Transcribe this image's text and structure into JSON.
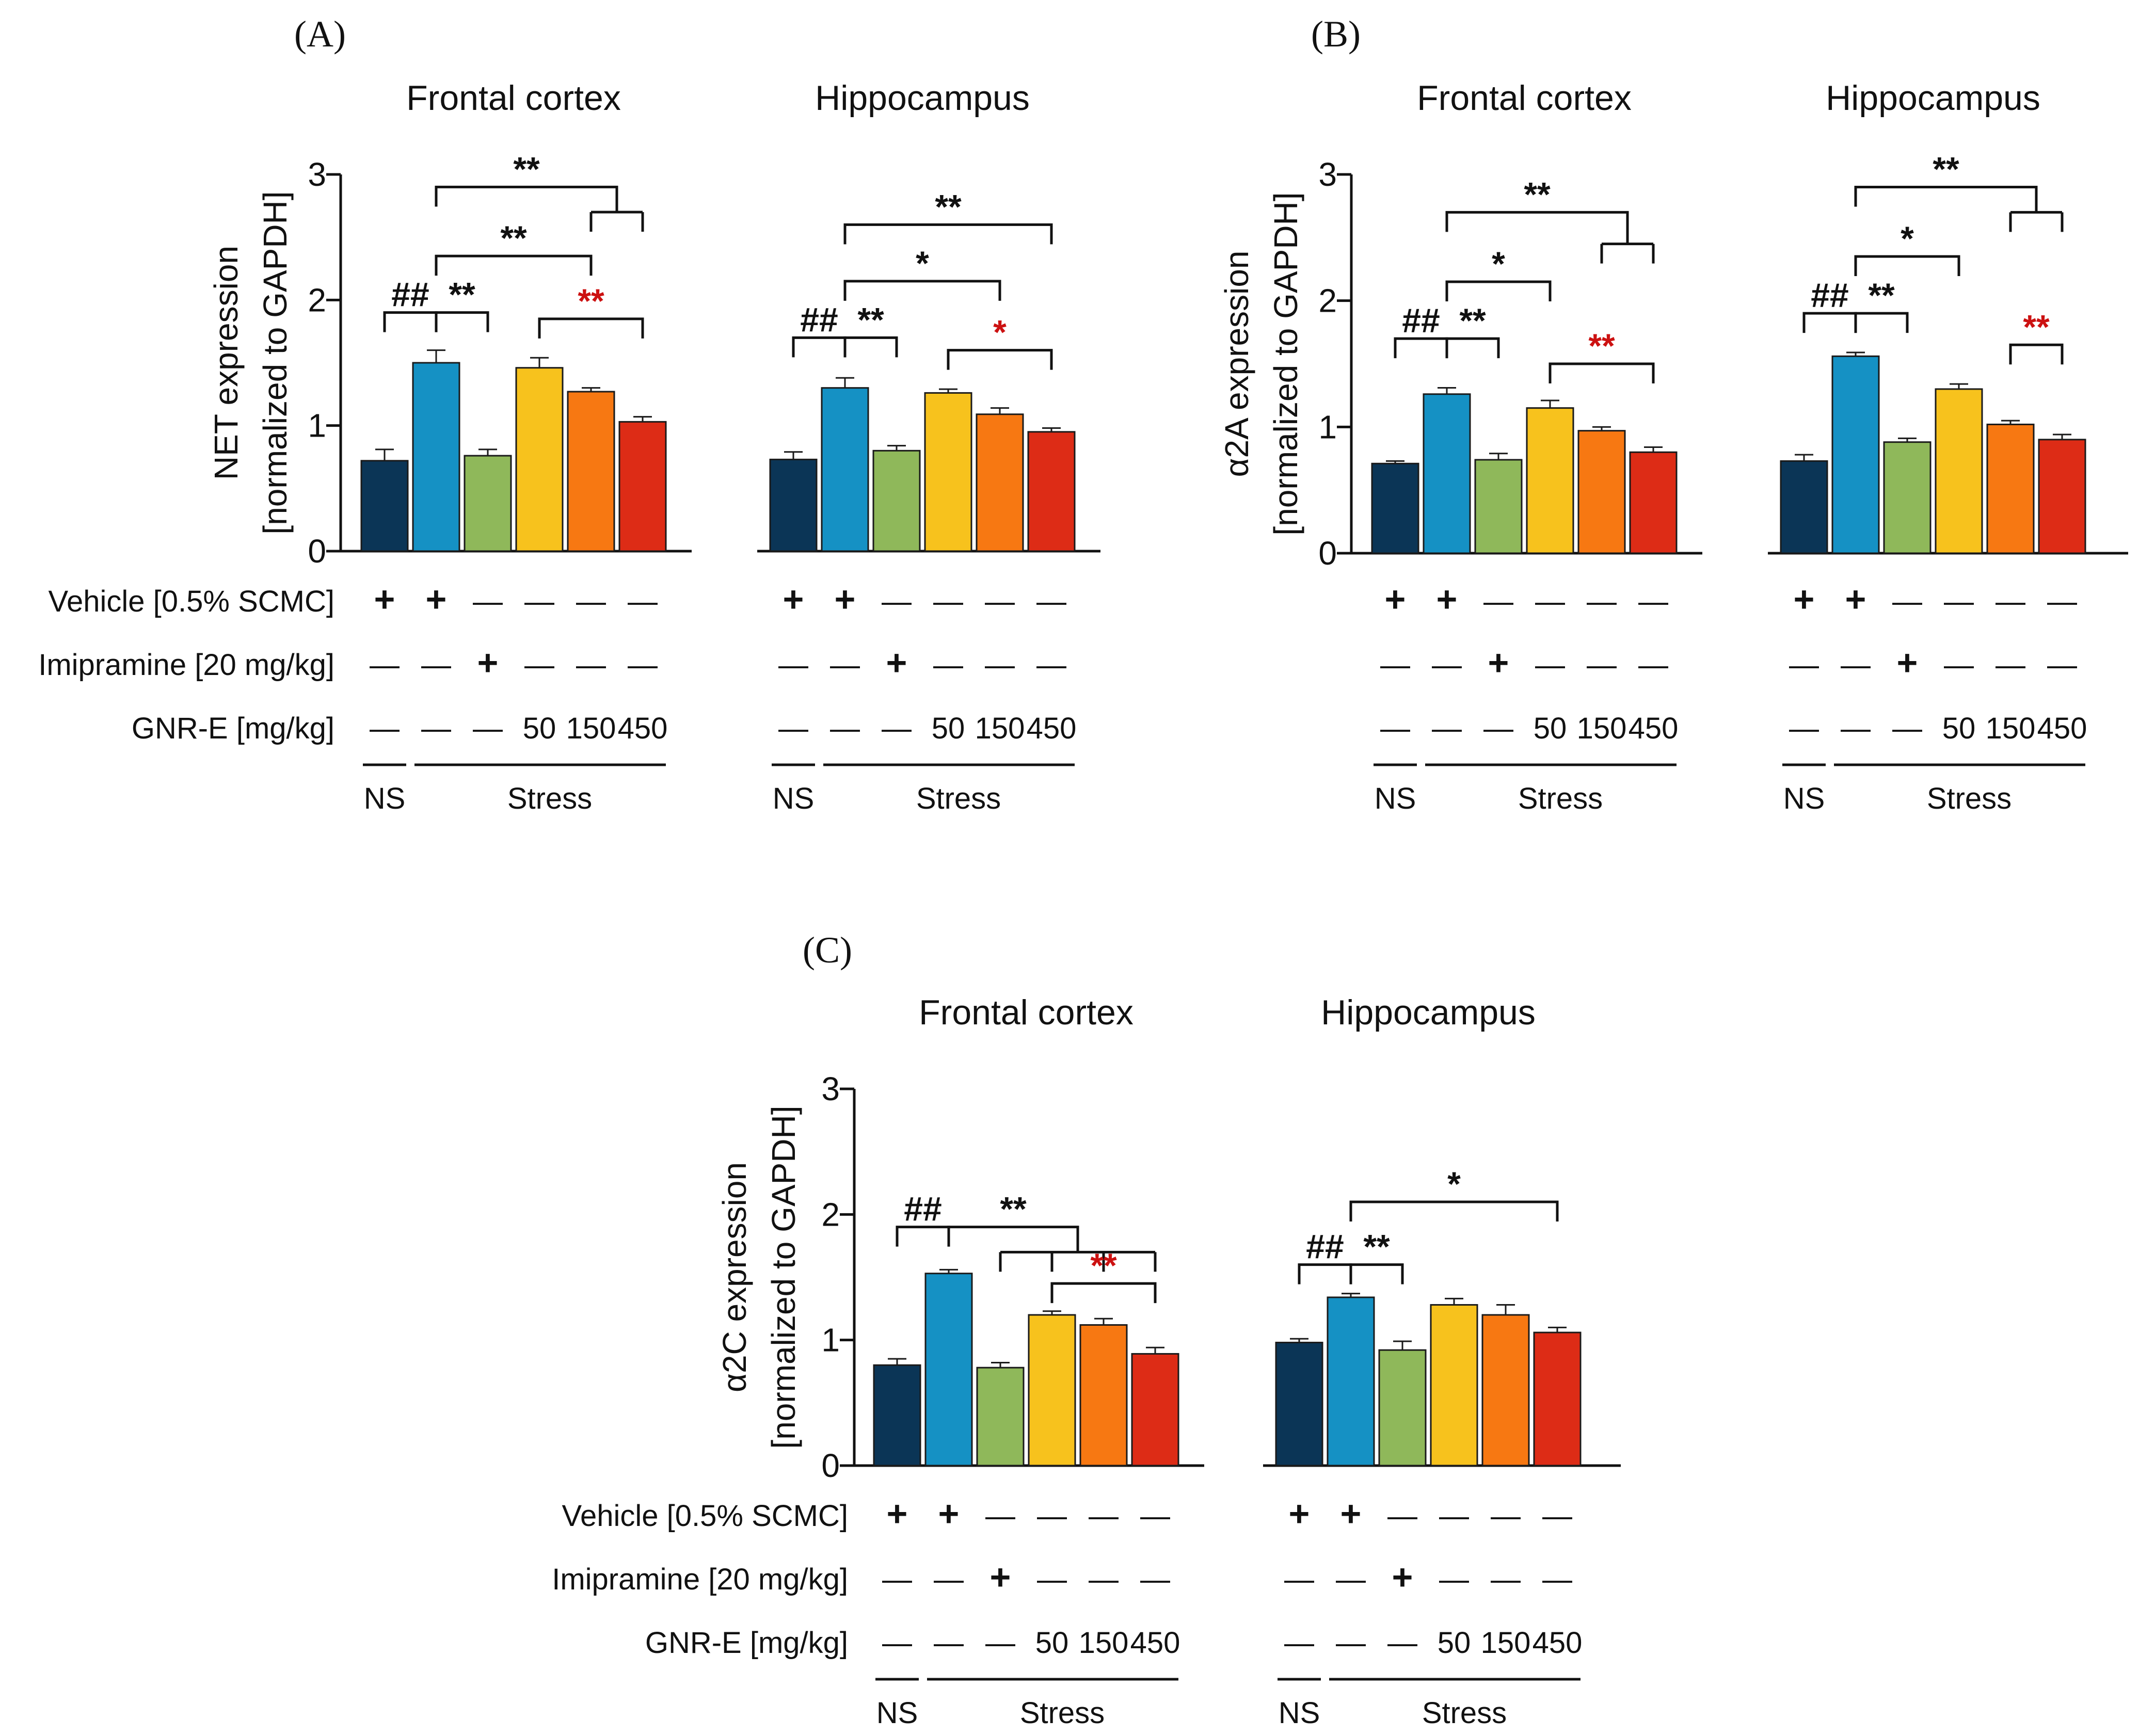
{
  "figure": {
    "row_labels": [
      "Vehicle [0.5% SCMC]",
      "Imipramine [20 mg/kg]",
      "GNR-E [mg/kg]"
    ],
    "group_labels": [
      "NS",
      "Stress"
    ],
    "regions": [
      "Frontal cortex",
      "Hippocampus"
    ]
  },
  "chart_data": [
    {
      "panel": "(A)",
      "type": "bar",
      "ylabel": [
        "NET expression",
        "[normalized to GAPDH]"
      ],
      "ylim": [
        0,
        3
      ],
      "yticks": [
        0,
        1,
        2,
        3
      ],
      "bar_colors": [
        "#0b3556",
        "#1591c4",
        "#8fb85a",
        "#f7c21d",
        "#f77812",
        "#dd2c16"
      ],
      "treatments": {
        "vehicle": [
          "+",
          "+",
          "—",
          "—",
          "—",
          "—"
        ],
        "imipramine": [
          "—",
          "—",
          "+",
          "—",
          "—",
          "—"
        ],
        "gnre": [
          "—",
          "—",
          "—",
          "50",
          "150",
          "450"
        ]
      },
      "subplots": [
        {
          "region": "Frontal cortex",
          "values": [
            0.72,
            1.5,
            0.76,
            1.46,
            1.27,
            1.03
          ],
          "errors": [
            0.09,
            0.1,
            0.05,
            0.08,
            0.03,
            0.04
          ],
          "annotations": [
            {
              "text": "##",
              "color": "#111111",
              "kind": "simple",
              "from": 0,
              "to": 1,
              "y": 1.9
            },
            {
              "text": "**",
              "color": "#111111",
              "kind": "simple",
              "from": 1,
              "to": 2,
              "y": 1.9
            },
            {
              "text": "**",
              "color": "#111111",
              "kind": "simple",
              "from": 1,
              "to": 4,
              "y": 2.35
            },
            {
              "text": "**",
              "color": "#cc1111",
              "kind": "simple",
              "from": 3,
              "to": 5,
              "y": 1.85
            },
            {
              "text": "**",
              "color": "#111111",
              "kind": "group",
              "from": 1,
              "to": [
                4,
                5
              ],
              "y": 2.9,
              "sub_y": 2.7
            }
          ]
        },
        {
          "region": "Hippocampus",
          "values": [
            0.73,
            1.3,
            0.8,
            1.26,
            1.09,
            0.95
          ],
          "errors": [
            0.06,
            0.08,
            0.04,
            0.03,
            0.05,
            0.03
          ],
          "annotations": [
            {
              "text": "##",
              "color": "#111111",
              "kind": "simple",
              "from": 0,
              "to": 1,
              "y": 1.7
            },
            {
              "text": "**",
              "color": "#111111",
              "kind": "simple",
              "from": 1,
              "to": 2,
              "y": 1.7
            },
            {
              "text": "*",
              "color": "#111111",
              "kind": "simple",
              "from": 1,
              "to": 4,
              "y": 2.15
            },
            {
              "text": "*",
              "color": "#cc1111",
              "kind": "simple",
              "from": 3,
              "to": 5,
              "y": 1.6
            },
            {
              "text": "**",
              "color": "#111111",
              "kind": "simple",
              "from": 1,
              "to": 5,
              "y": 2.6
            }
          ]
        }
      ]
    },
    {
      "panel": "(B)",
      "type": "bar",
      "ylabel": [
        "α2A expression",
        "[normalized to GAPDH]"
      ],
      "ylim": [
        0,
        3
      ],
      "yticks": [
        0,
        1,
        2,
        3
      ],
      "bar_colors": [
        "#0b3556",
        "#1591c4",
        "#8fb85a",
        "#f7c21d",
        "#f77812",
        "#dd2c16"
      ],
      "treatments": {
        "vehicle": [
          "+",
          "+",
          "—",
          "—",
          "—",
          "—"
        ],
        "imipramine": [
          "—",
          "—",
          "+",
          "—",
          "—",
          "—"
        ],
        "gnre": [
          "—",
          "—",
          "—",
          "50",
          "150",
          "450"
        ]
      },
      "subplots": [
        {
          "region": "Frontal cortex",
          "values": [
            0.71,
            1.26,
            0.74,
            1.15,
            0.97,
            0.8
          ],
          "errors": [
            0.02,
            0.05,
            0.05,
            0.06,
            0.03,
            0.04
          ],
          "annotations": [
            {
              "text": "##",
              "color": "#111111",
              "kind": "simple",
              "from": 0,
              "to": 1,
              "y": 1.7
            },
            {
              "text": "**",
              "color": "#111111",
              "kind": "simple",
              "from": 1,
              "to": 2,
              "y": 1.7
            },
            {
              "text": "*",
              "color": "#111111",
              "kind": "simple",
              "from": 1,
              "to": 3,
              "y": 2.15
            },
            {
              "text": "**",
              "color": "#cc1111",
              "kind": "simple",
              "from": 3,
              "to": 5,
              "y": 1.5
            },
            {
              "text": "**",
              "color": "#111111",
              "kind": "group",
              "from": 1,
              "to": [
                4,
                5
              ],
              "y": 2.7,
              "sub_y": 2.45
            }
          ]
        },
        {
          "region": "Hippocampus",
          "values": [
            0.73,
            1.56,
            0.88,
            1.3,
            1.02,
            0.9
          ],
          "errors": [
            0.05,
            0.03,
            0.03,
            0.04,
            0.03,
            0.04
          ],
          "annotations": [
            {
              "text": "##",
              "color": "#111111",
              "kind": "simple",
              "from": 0,
              "to": 1,
              "y": 1.9
            },
            {
              "text": "**",
              "color": "#111111",
              "kind": "simple",
              "from": 1,
              "to": 2,
              "y": 1.9
            },
            {
              "text": "*",
              "color": "#111111",
              "kind": "simple",
              "from": 1,
              "to": 3,
              "y": 2.35
            },
            {
              "text": "**",
              "color": "#cc1111",
              "kind": "simple",
              "from": 4,
              "to": 5,
              "y": 1.65
            },
            {
              "text": "**",
              "color": "#111111",
              "kind": "group",
              "from": 1,
              "to": [
                4,
                5
              ],
              "y": 2.9,
              "sub_y": 2.7
            }
          ]
        }
      ]
    },
    {
      "panel": "(C)",
      "type": "bar",
      "ylabel": [
        "α2C expression",
        "[normalized to GAPDH]"
      ],
      "ylim": [
        0,
        3
      ],
      "yticks": [
        0,
        1,
        2,
        3
      ],
      "bar_colors": [
        "#0b3556",
        "#1591c4",
        "#8fb85a",
        "#f7c21d",
        "#f77812",
        "#dd2c16"
      ],
      "treatments": {
        "vehicle": [
          "+",
          "+",
          "—",
          "—",
          "—",
          "—"
        ],
        "imipramine": [
          "—",
          "—",
          "+",
          "—",
          "—",
          "—"
        ],
        "gnre": [
          "—",
          "—",
          "—",
          "50",
          "150",
          "450"
        ]
      },
      "subplots": [
        {
          "region": "Frontal cortex",
          "values": [
            0.8,
            1.53,
            0.78,
            1.2,
            1.12,
            0.89
          ],
          "errors": [
            0.05,
            0.03,
            0.04,
            0.03,
            0.05,
            0.05
          ],
          "annotations": [
            {
              "text": "##",
              "color": "#111111",
              "kind": "simple",
              "from": 0,
              "to": 1,
              "y": 1.9
            },
            {
              "text": "**",
              "color": "#111111",
              "kind": "group",
              "from": 1,
              "to": [
                2,
                3,
                4,
                5
              ],
              "y": 1.9,
              "sub_y": 1.7
            },
            {
              "text": "**",
              "color": "#cc1111",
              "kind": "simple",
              "from": 3,
              "to": 5,
              "y": 1.45
            }
          ]
        },
        {
          "region": "Hippocampus",
          "values": [
            0.98,
            1.34,
            0.92,
            1.28,
            1.2,
            1.06
          ],
          "errors": [
            0.03,
            0.03,
            0.07,
            0.05,
            0.08,
            0.04
          ],
          "annotations": [
            {
              "text": "##",
              "color": "#111111",
              "kind": "simple",
              "from": 0,
              "to": 1,
              "y": 1.6
            },
            {
              "text": "**",
              "color": "#111111",
              "kind": "simple",
              "from": 1,
              "to": 2,
              "y": 1.6
            },
            {
              "text": "*",
              "color": "#111111",
              "kind": "simple",
              "from": 1,
              "to": 5,
              "y": 2.1
            }
          ]
        }
      ]
    }
  ]
}
